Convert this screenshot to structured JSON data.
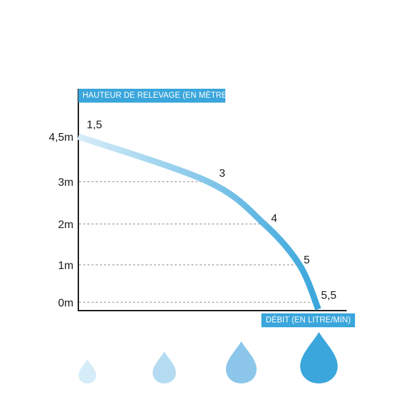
{
  "chart_data": {
    "type": "line",
    "ylabel": "HAUTEUR DE RELEVAGE (EN MÈTRE)",
    "xlabel": "DÉBIT (EN LITRE/MIN)",
    "y_ticks": [
      "0m",
      "1m",
      "2m",
      "3m",
      "4,5m"
    ],
    "series": [
      {
        "points": [
          {
            "x": 1.5,
            "y": 4.5,
            "label": "1,5"
          },
          {
            "x": 3,
            "y": 3,
            "label": "3"
          },
          {
            "x": 4,
            "y": 2,
            "label": "4"
          },
          {
            "x": 5,
            "y": 1,
            "label": "5"
          },
          {
            "x": 5.5,
            "y": 0,
            "label": "5,5"
          }
        ]
      }
    ],
    "gradient_colors": [
      "#d6ecf8",
      "#3aa6dc"
    ],
    "grid": "dashed horizontal at tick levels",
    "legend": "none"
  },
  "drop_icons": {
    "names": [
      "water-drop-icon",
      "water-drop-icon",
      "water-drop-icon",
      "water-drop-icon"
    ],
    "colors": [
      "#d6ecf8",
      "#b4dbf2",
      "#8cc6ea",
      "#3aa6dc"
    ]
  }
}
